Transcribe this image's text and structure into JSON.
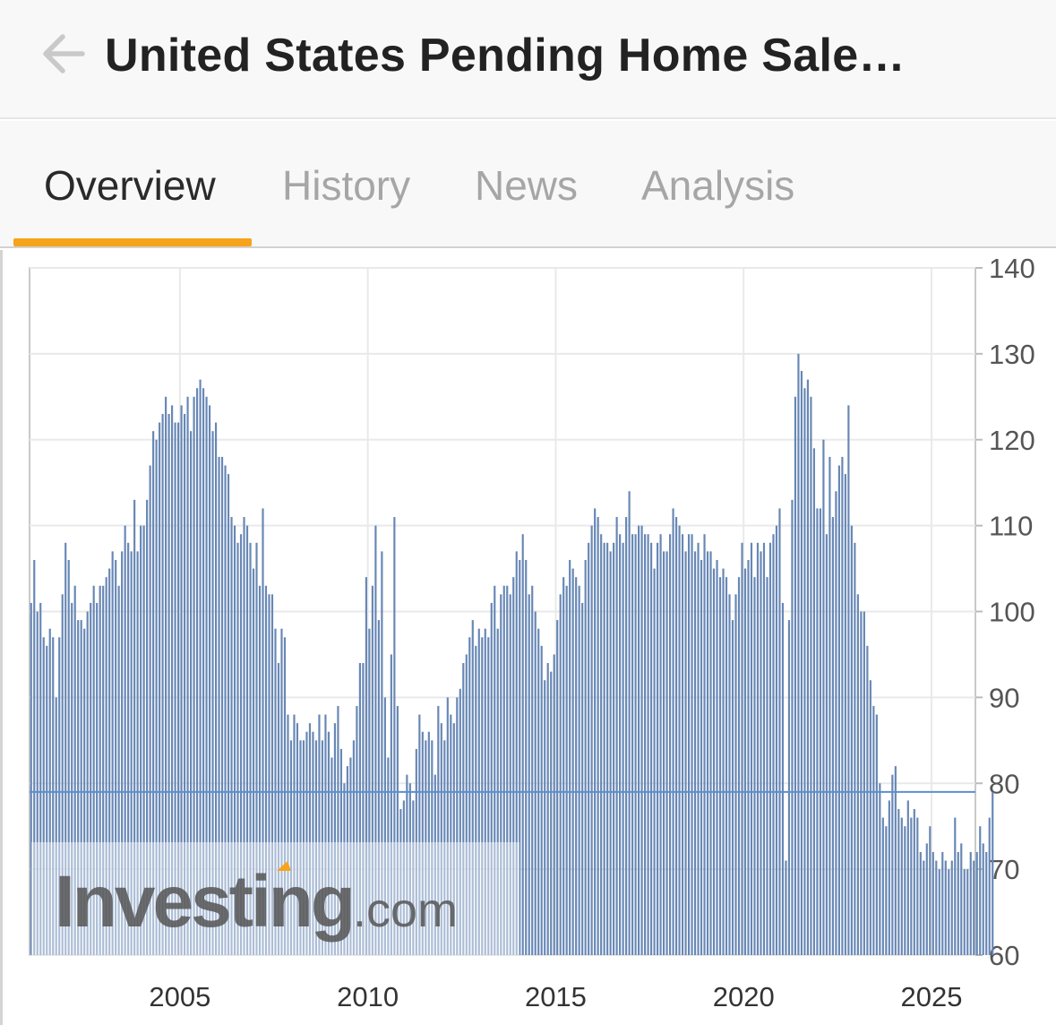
{
  "header": {
    "title": "United States Pending Home Sale…",
    "back_icon": "arrow-left-icon"
  },
  "tabs": [
    {
      "label": "Overview",
      "active": true
    },
    {
      "label": "History",
      "active": false
    },
    {
      "label": "News",
      "active": false
    },
    {
      "label": "Analysis",
      "active": false
    }
  ],
  "colors": {
    "accent": "#f7a31c",
    "bar": "#6787b5",
    "current_line": "#5b8fd0"
  },
  "watermark": "Investing.com",
  "chart_data": {
    "type": "bar",
    "ylim": [
      60,
      140
    ],
    "yticks": [
      "60",
      "70",
      "80",
      "90",
      "100",
      "110",
      "120",
      "130",
      "140"
    ],
    "xticks": [
      "2005",
      "2010",
      "2015",
      "2020",
      "2025"
    ],
    "y_axis_position": "right",
    "grid": true,
    "current_value_line": 79,
    "x_start": "2001-01",
    "frequency": "monthly",
    "yearly_values": [
      [
        101,
        106,
        100,
        101,
        97,
        96,
        98,
        97,
        90,
        97,
        102,
        108
      ],
      [
        106,
        101,
        103,
        99,
        99,
        98,
        100,
        101,
        103,
        101,
        103,
        103
      ],
      [
        104,
        105,
        107,
        106,
        103,
        107,
        110,
        108,
        107,
        113,
        107,
        110
      ],
      [
        110,
        113,
        117,
        121,
        120,
        122,
        123,
        125,
        123,
        124,
        122,
        122
      ],
      [
        124,
        123,
        125,
        121,
        125,
        126,
        127,
        126,
        125,
        124,
        121,
        122
      ],
      [
        118,
        118,
        117,
        116,
        111,
        110,
        108,
        109,
        111,
        110,
        108,
        105
      ],
      [
        108,
        103,
        112,
        103,
        102,
        102,
        98,
        94,
        98,
        97,
        88,
        85
      ],
      [
        88,
        87,
        85,
        85,
        86,
        87,
        86,
        85,
        88,
        85,
        88,
        86
      ],
      [
        83,
        87,
        89,
        84,
        80,
        82,
        83,
        85,
        89,
        94,
        94,
        104
      ],
      [
        98,
        103,
        110,
        99,
        107,
        90,
        83,
        95,
        111,
        89,
        77,
        78
      ],
      [
        81,
        80,
        78,
        84,
        88,
        86,
        85,
        86,
        85,
        81,
        89,
        87
      ],
      [
        85,
        90,
        88,
        87,
        90,
        91,
        94,
        95,
        97,
        99,
        96,
        98
      ],
      [
        97,
        98,
        97,
        101,
        103,
        98,
        102,
        103,
        103,
        102,
        104,
        107
      ],
      [
        106,
        109,
        106,
        102,
        103,
        100,
        98,
        96,
        92,
        94,
        93,
        95
      ],
      [
        99,
        102,
        104,
        103,
        106,
        105,
        104,
        103,
        101,
        106,
        108,
        110
      ],
      [
        112,
        111,
        109,
        108,
        108,
        107,
        108,
        111,
        109,
        108,
        111,
        114
      ],
      [
        109,
        109,
        110,
        110,
        109,
        109,
        108,
        105,
        108,
        109,
        107,
        107
      ],
      [
        109,
        112,
        111,
        110,
        109,
        107,
        109,
        109,
        107,
        108,
        106,
        109
      ],
      [
        107,
        107,
        105,
        106,
        104,
        105,
        104,
        102,
        99,
        102,
        104,
        108
      ],
      [
        105,
        106,
        108,
        104,
        108,
        107,
        108,
        104,
        108,
        109,
        110,
        112
      ],
      [
        101,
        71,
        99,
        113,
        125,
        130,
        128,
        126,
        127,
        125,
        119,
        112
      ],
      [
        112,
        120,
        109,
        118,
        111,
        114,
        117,
        118,
        116,
        124,
        110,
        108
      ],
      [
        102,
        100,
        100,
        96,
        92,
        89,
        88,
        80,
        76,
        75,
        78,
        81
      ],
      [
        82,
        77,
        76,
        75,
        78,
        76,
        77,
        76,
        72,
        71,
        73,
        75
      ],
      [
        72,
        71,
        70,
        72,
        71,
        70,
        71,
        76,
        72,
        73,
        70,
        70
      ],
      [
        72,
        71,
        72,
        75,
        73,
        72,
        76,
        79
      ]
    ]
  }
}
